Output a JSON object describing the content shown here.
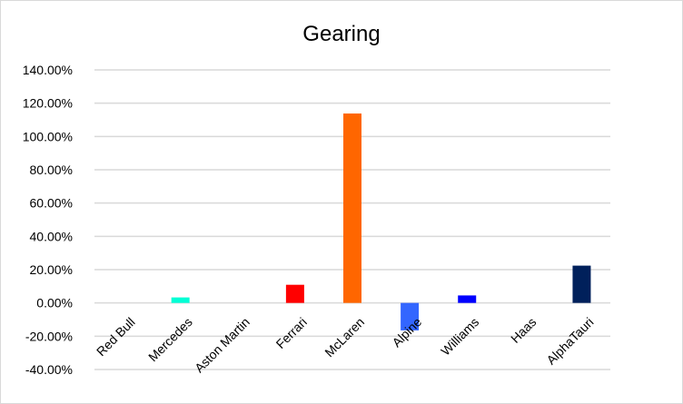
{
  "chart_data": {
    "type": "bar",
    "title": "Gearing",
    "xlabel": "",
    "ylabel": "",
    "categories": [
      "Red Bull",
      "Mercedes",
      "Aston Martin",
      "Ferrari",
      "McLaren",
      "Alpine",
      "Williams",
      "Haas",
      "AlphaTauri"
    ],
    "values": [
      0,
      3.3,
      0,
      10.9,
      113.8,
      -16.5,
      4.5,
      0,
      22.4
    ],
    "colors": [
      "#1e41ff",
      "#00ffd5",
      "#006f62",
      "#ff0000",
      "#ff6600",
      "#3366ff",
      "#0000ff",
      "#888888",
      "#00205b"
    ],
    "ylim": [
      -40,
      140
    ],
    "yticks": [
      140,
      120,
      100,
      80,
      60,
      40,
      20,
      0,
      -20,
      -40
    ],
    "ytick_labels": [
      "140.00%",
      "120.00%",
      "100.00%",
      "80.00%",
      "60.00%",
      "40.00%",
      "20.00%",
      "0.00%",
      "-20.00%",
      "-40.00%"
    ],
    "grid": true,
    "legend": "none"
  }
}
